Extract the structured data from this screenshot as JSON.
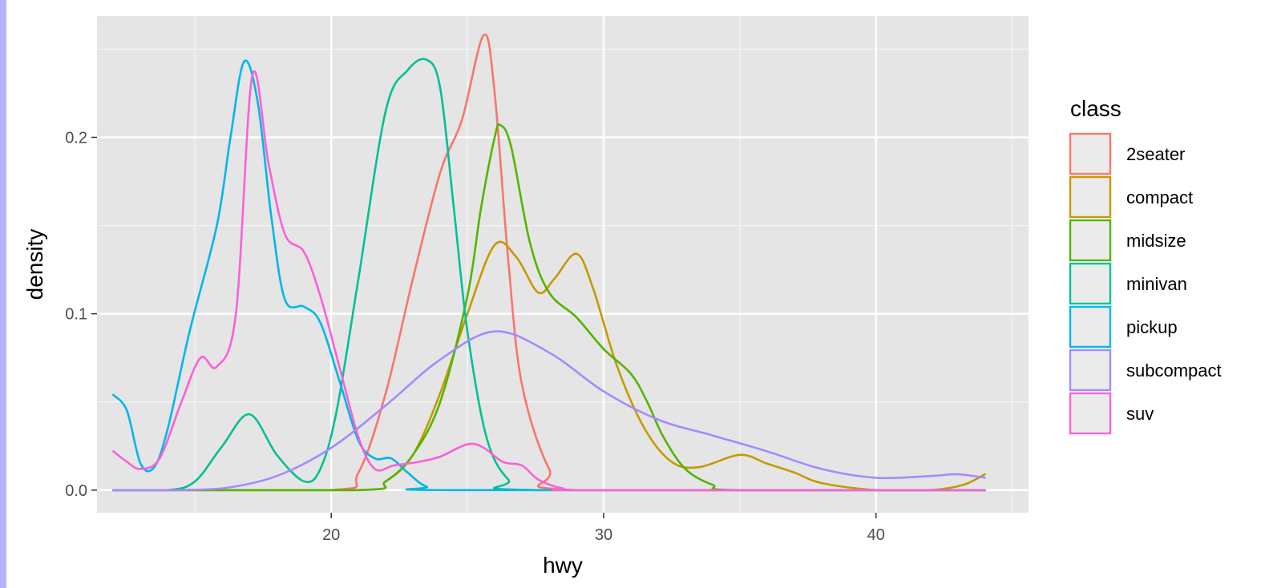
{
  "chart_data": {
    "type": "line",
    "title": "",
    "xlabel": "hwy",
    "ylabel": "density",
    "xlim": [
      11.4,
      45.6
    ],
    "ylim": [
      -0.0128,
      0.2688
    ],
    "x_ticks": [
      20,
      30,
      40
    ],
    "x_tick_labels": [
      "20",
      "30",
      "40"
    ],
    "x_minor_ticks": [
      15,
      25,
      35,
      45
    ],
    "y_ticks": [
      0.0,
      0.1,
      0.2
    ],
    "y_tick_labels": [
      "0.0",
      "0.1",
      "0.2"
    ],
    "y_minor_ticks": [
      0.05,
      0.15,
      0.25
    ],
    "grid": true,
    "panel_background": "#e5e5e5",
    "legend": {
      "title": "class",
      "position": "right"
    },
    "series": [
      {
        "name": "2seater",
        "color": "#f8766d",
        "points": [
          [
            12,
            0
          ],
          [
            20,
            0
          ],
          [
            21,
            0.01
          ],
          [
            22,
            0.055
          ],
          [
            23,
            0.12
          ],
          [
            24,
            0.18
          ],
          [
            24.8,
            0.21
          ],
          [
            25.6,
            0.258
          ],
          [
            26,
            0.225
          ],
          [
            26.5,
            0.13
          ],
          [
            27,
            0.06
          ],
          [
            28,
            0.012
          ],
          [
            29,
            0
          ],
          [
            44,
            0
          ]
        ]
      },
      {
        "name": "compact",
        "color": "#c49a00",
        "points": [
          [
            12,
            0
          ],
          [
            21,
            0
          ],
          [
            22,
            0.005
          ],
          [
            23,
            0.02
          ],
          [
            24,
            0.055
          ],
          [
            25,
            0.1
          ],
          [
            26,
            0.139
          ],
          [
            26.8,
            0.132
          ],
          [
            27.6,
            0.112
          ],
          [
            28.2,
            0.12
          ],
          [
            29,
            0.134
          ],
          [
            29.6,
            0.115
          ],
          [
            30.5,
            0.07
          ],
          [
            31.5,
            0.035
          ],
          [
            32.5,
            0.016
          ],
          [
            33.5,
            0.013
          ],
          [
            35,
            0.02
          ],
          [
            36,
            0.015
          ],
          [
            37,
            0.01
          ],
          [
            38,
            0.004
          ],
          [
            40,
            0
          ],
          [
            42,
            0
          ],
          [
            43.2,
            0.003
          ],
          [
            44,
            0.009
          ]
        ]
      },
      {
        "name": "midsize",
        "color": "#53b400",
        "points": [
          [
            12,
            0
          ],
          [
            21,
            0
          ],
          [
            22,
            0.005
          ],
          [
            23,
            0.02
          ],
          [
            24,
            0.05
          ],
          [
            25,
            0.11
          ],
          [
            25.5,
            0.16
          ],
          [
            26,
            0.2
          ],
          [
            26.2,
            0.207
          ],
          [
            26.6,
            0.195
          ],
          [
            27.3,
            0.14
          ],
          [
            28,
            0.112
          ],
          [
            29,
            0.098
          ],
          [
            30,
            0.08
          ],
          [
            31,
            0.066
          ],
          [
            31.6,
            0.05
          ],
          [
            32.2,
            0.03
          ],
          [
            33,
            0.012
          ],
          [
            34,
            0.003
          ],
          [
            35,
            0
          ],
          [
            44,
            0
          ]
        ]
      },
      {
        "name": "minivan",
        "color": "#00c094",
        "points": [
          [
            12,
            0
          ],
          [
            14,
            0
          ],
          [
            15,
            0.005
          ],
          [
            16,
            0.025
          ],
          [
            17,
            0.043
          ],
          [
            18,
            0.02
          ],
          [
            19,
            0.005
          ],
          [
            19.6,
            0.012
          ],
          [
            20.2,
            0.045
          ],
          [
            21,
            0.12
          ],
          [
            22,
            0.215
          ],
          [
            22.8,
            0.238
          ],
          [
            23.5,
            0.244
          ],
          [
            24,
            0.228
          ],
          [
            24.5,
            0.16
          ],
          [
            25,
            0.09
          ],
          [
            25.7,
            0.03
          ],
          [
            26.5,
            0.006
          ],
          [
            27.5,
            0
          ],
          [
            44,
            0
          ]
        ]
      },
      {
        "name": "pickup",
        "color": "#00b6eb",
        "points": [
          [
            12,
            0.054
          ],
          [
            12.5,
            0.045
          ],
          [
            13,
            0.015
          ],
          [
            13.5,
            0.013
          ],
          [
            14,
            0.035
          ],
          [
            14.8,
            0.09
          ],
          [
            15.8,
            0.15
          ],
          [
            16.3,
            0.2
          ],
          [
            16.8,
            0.243
          ],
          [
            17.3,
            0.22
          ],
          [
            17.8,
            0.155
          ],
          [
            18.3,
            0.108
          ],
          [
            19,
            0.104
          ],
          [
            19.6,
            0.095
          ],
          [
            20.3,
            0.062
          ],
          [
            21,
            0.028
          ],
          [
            21.6,
            0.018
          ],
          [
            22.2,
            0.018
          ],
          [
            22.8,
            0.01
          ],
          [
            23.5,
            0.002
          ],
          [
            24.5,
            0
          ],
          [
            44,
            0
          ]
        ]
      },
      {
        "name": "subcompact",
        "color": "#a58aff",
        "points": [
          [
            12,
            0
          ],
          [
            14,
            0
          ],
          [
            16,
            0.001
          ],
          [
            18,
            0.008
          ],
          [
            20,
            0.024
          ],
          [
            22,
            0.048
          ],
          [
            24,
            0.074
          ],
          [
            26,
            0.09
          ],
          [
            28,
            0.078
          ],
          [
            30,
            0.056
          ],
          [
            32,
            0.04
          ],
          [
            34,
            0.031
          ],
          [
            36,
            0.022
          ],
          [
            38,
            0.012
          ],
          [
            40,
            0.007
          ],
          [
            42,
            0.008
          ],
          [
            43,
            0.009
          ],
          [
            44,
            0.007
          ]
        ]
      },
      {
        "name": "suv",
        "color": "#fb61d7",
        "points": [
          [
            12,
            0.022
          ],
          [
            12.5,
            0.016
          ],
          [
            13,
            0.012
          ],
          [
            13.7,
            0.018
          ],
          [
            14.5,
            0.05
          ],
          [
            15.2,
            0.075
          ],
          [
            15.8,
            0.07
          ],
          [
            16.5,
            0.1
          ],
          [
            17.1,
            0.235
          ],
          [
            17.7,
            0.185
          ],
          [
            18.3,
            0.145
          ],
          [
            19,
            0.135
          ],
          [
            19.6,
            0.11
          ],
          [
            20.3,
            0.07
          ],
          [
            21,
            0.03
          ],
          [
            21.6,
            0.012
          ],
          [
            22.3,
            0.014
          ],
          [
            23.2,
            0.016
          ],
          [
            24,
            0.019
          ],
          [
            25,
            0.026
          ],
          [
            25.6,
            0.024
          ],
          [
            26.3,
            0.016
          ],
          [
            27,
            0.014
          ],
          [
            27.6,
            0.006
          ],
          [
            28.5,
            0.001
          ],
          [
            29.5,
            0
          ],
          [
            44,
            0
          ]
        ]
      }
    ]
  }
}
